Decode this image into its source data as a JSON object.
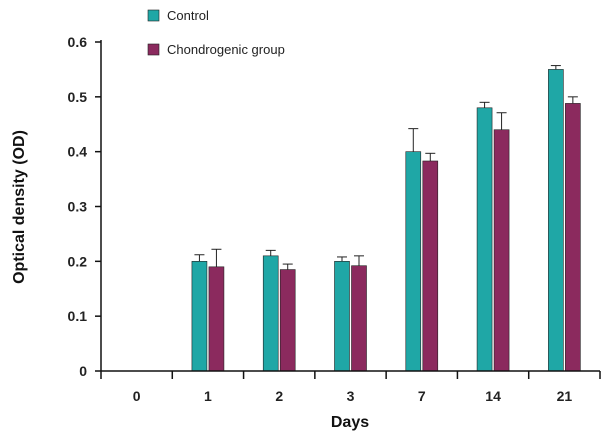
{
  "chart_data": {
    "type": "bar",
    "xlabel": "Days",
    "ylabel": "Optical density (OD)",
    "categories": [
      "0",
      "1",
      "2",
      "3",
      "7",
      "14",
      "21"
    ],
    "ylim": [
      0,
      0.6
    ],
    "yticks": [
      "0",
      "0.1",
      "0.2",
      "0.3",
      "0.4",
      "0.5",
      "0.6"
    ],
    "legend_position": "top-left",
    "grid": false,
    "series": [
      {
        "name": "Control",
        "color": "#1fa7a6",
        "values": [
          null,
          0.2,
          0.21,
          0.2,
          0.4,
          0.48,
          0.55
        ],
        "errors": [
          null,
          0.012,
          0.01,
          0.008,
          0.042,
          0.01,
          0.007
        ]
      },
      {
        "name": "Chondrogenic group",
        "color": "#8b2a5e",
        "values": [
          null,
          0.19,
          0.185,
          0.192,
          0.383,
          0.44,
          0.488
        ],
        "errors": [
          null,
          0.032,
          0.01,
          0.018,
          0.014,
          0.031,
          0.012
        ]
      }
    ]
  }
}
